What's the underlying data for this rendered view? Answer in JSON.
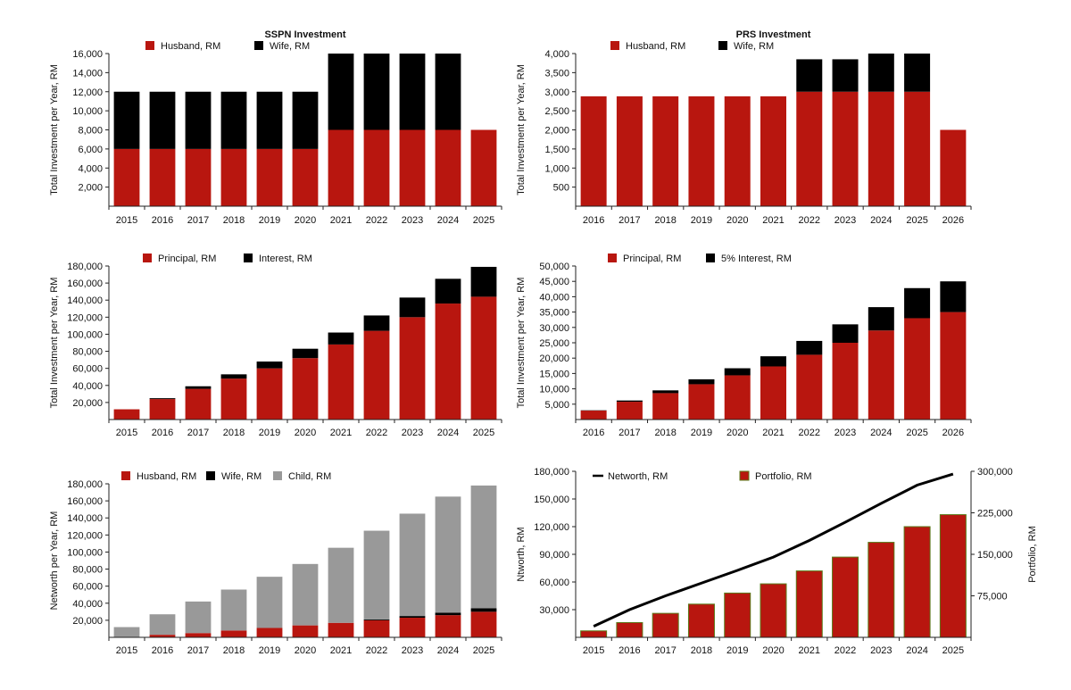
{
  "colors": {
    "red": "#b8160f",
    "black": "#000000",
    "gray": "#999999",
    "axis": "#222222",
    "line": "#000000"
  },
  "chart_data": [
    {
      "id": "sspn",
      "type": "bar",
      "stacked": true,
      "title": "SSPN Investment",
      "ylabel": "Total Investment per Year, RM",
      "xlabel": "",
      "ylim": [
        0,
        16000
      ],
      "yticks": [
        2000,
        4000,
        6000,
        8000,
        10000,
        12000,
        14000,
        16000
      ],
      "ytick_labels": [
        "2,000",
        "4,000",
        "6,000",
        "8,000",
        "10,000",
        "12,000",
        "14,000",
        "16,000"
      ],
      "categories": [
        "2015",
        "2016",
        "2017",
        "2018",
        "2019",
        "2020",
        "2021",
        "2022",
        "2023",
        "2024",
        "2025"
      ],
      "series": [
        {
          "name": "Husband, RM",
          "color": "red",
          "values": [
            6000,
            6000,
            6000,
            6000,
            6000,
            6000,
            8000,
            8000,
            8000,
            8000,
            8000
          ]
        },
        {
          "name": "Wife, RM",
          "color": "black",
          "values": [
            6000,
            6000,
            6000,
            6000,
            6000,
            6000,
            8000,
            8000,
            8000,
            8000,
            0
          ]
        }
      ],
      "legend": "top"
    },
    {
      "id": "prs",
      "type": "bar",
      "stacked": true,
      "title": "PRS Investment",
      "ylabel": "Total Investment per Year, RM",
      "xlabel": "",
      "ylim": [
        0,
        4000
      ],
      "yticks": [
        500,
        1000,
        1500,
        2000,
        2500,
        3000,
        3500,
        4000
      ],
      "ytick_labels": [
        "500",
        "1,000",
        "1,500",
        "2,000",
        "2,500",
        "3,000",
        "3,500",
        "4,000"
      ],
      "categories": [
        "2016",
        "2017",
        "2018",
        "2019",
        "2020",
        "2021",
        "2022",
        "2023",
        "2024",
        "2025",
        "2026"
      ],
      "series": [
        {
          "name": "Husband, RM",
          "color": "red",
          "values": [
            2880,
            2880,
            2880,
            2880,
            2880,
            2880,
            3000,
            3000,
            3000,
            3000,
            2000
          ]
        },
        {
          "name": "Wife, RM",
          "color": "black",
          "values": [
            0,
            0,
            0,
            0,
            0,
            0,
            850,
            850,
            1000,
            1000,
            0
          ]
        }
      ],
      "legend": "top"
    },
    {
      "id": "sspn_growth",
      "type": "bar",
      "stacked": true,
      "title": "",
      "ylabel": "Total Investment per Year, RM",
      "xlabel": "",
      "ylim": [
        0,
        180000
      ],
      "yticks": [
        20000,
        40000,
        60000,
        80000,
        100000,
        120000,
        140000,
        160000,
        180000
      ],
      "ytick_labels": [
        "20,000",
        "40,000",
        "60,000",
        "80,000",
        "100,000",
        "120,000",
        "140,000",
        "160,000",
        "180,000"
      ],
      "categories": [
        "2015",
        "2016",
        "2017",
        "2018",
        "2019",
        "2020",
        "2021",
        "2022",
        "2023",
        "2024",
        "2025"
      ],
      "series": [
        {
          "name": "Principal, RM",
          "color": "red",
          "values": [
            12000,
            24000,
            36000,
            48000,
            60000,
            72000,
            88000,
            104000,
            120000,
            136000,
            144000
          ]
        },
        {
          "name": "Interest, RM",
          "color": "black",
          "values": [
            0,
            1000,
            3000,
            5000,
            8000,
            11000,
            14000,
            18000,
            23000,
            29000,
            35000
          ]
        }
      ],
      "legend": "top"
    },
    {
      "id": "prs_growth",
      "type": "bar",
      "stacked": true,
      "title": "",
      "ylabel": "Total Investment per Year, RM",
      "xlabel": "",
      "ylim": [
        0,
        50000
      ],
      "yticks": [
        5000,
        10000,
        15000,
        20000,
        25000,
        30000,
        35000,
        40000,
        45000,
        50000
      ],
      "ytick_labels": [
        "5,000",
        "10,000",
        "15,000",
        "20,000",
        "25,000",
        "30,000",
        "35,000",
        "40,000",
        "45,000",
        "50,000"
      ],
      "categories": [
        "2016",
        "2017",
        "2018",
        "2019",
        "2020",
        "2021",
        "2022",
        "2023",
        "2024",
        "2025",
        "2026"
      ],
      "series": [
        {
          "name": "Principal, RM",
          "color": "red",
          "values": [
            2900,
            5800,
            8600,
            11500,
            14400,
            17300,
            21100,
            25000,
            29000,
            33000,
            35000
          ]
        },
        {
          "name": "5% Interest, RM",
          "color": "black",
          "values": [
            100,
            400,
            900,
            1600,
            2300,
            3300,
            4500,
            6000,
            7600,
            9800,
            10000
          ]
        }
      ],
      "legend": "top"
    },
    {
      "id": "networth_split",
      "type": "bar",
      "stacked": true,
      "title": "",
      "ylabel": "Networth per Year, RM",
      "xlabel": "",
      "ylim": [
        0,
        180000
      ],
      "yticks": [
        20000,
        40000,
        60000,
        80000,
        100000,
        120000,
        140000,
        160000,
        180000
      ],
      "ytick_labels": [
        "20,000",
        "40,000",
        "60,000",
        "80,000",
        "100,000",
        "120,000",
        "140,000",
        "160,000",
        "180,000"
      ],
      "categories": [
        "2015",
        "2016",
        "2017",
        "2018",
        "2019",
        "2020",
        "2021",
        "2022",
        "2023",
        "2024",
        "2025"
      ],
      "series": [
        {
          "name": "Husband, RM",
          "color": "red",
          "values": [
            0,
            3000,
            5000,
            8000,
            11000,
            14000,
            17000,
            20000,
            23000,
            26000,
            30000
          ]
        },
        {
          "name": "Wife, RM",
          "color": "black",
          "values": [
            0,
            0,
            0,
            0,
            0,
            0,
            0,
            1000,
            2000,
            3000,
            4000
          ]
        },
        {
          "name": "Child, RM",
          "color": "gray",
          "values": [
            12000,
            24000,
            37000,
            48000,
            60000,
            72000,
            88000,
            104000,
            120000,
            136000,
            144000
          ]
        }
      ],
      "legend": "top"
    },
    {
      "id": "networth_portfolio",
      "type": "bar+line",
      "title": "",
      "ylabel": "Ntworth, RM",
      "y2label": "Portfolio, RM",
      "xlabel": "",
      "ylim": [
        0,
        180000
      ],
      "yticks": [
        30000,
        60000,
        90000,
        120000,
        150000,
        180000
      ],
      "ytick_labels": [
        "30,000",
        "60,000",
        "90,000",
        "120,000",
        "150,000",
        "180,000"
      ],
      "y2lim": [
        0,
        300000
      ],
      "y2ticks": [
        75000,
        150000,
        225000,
        300000
      ],
      "y2tick_labels": [
        "75,000",
        "150,000",
        "225,000",
        "300,000"
      ],
      "categories": [
        "2015",
        "2016",
        "2017",
        "2018",
        "2019",
        "2020",
        "2021",
        "2022",
        "2023",
        "2024",
        "2025"
      ],
      "series": [
        {
          "name": "Portfolio, RM",
          "kind": "bar",
          "axis": "left",
          "color": "red",
          "values": [
            7000,
            16000,
            26000,
            36000,
            48000,
            58000,
            72000,
            87000,
            103000,
            120000,
            133000
          ]
        },
        {
          "name": "Networth, RM",
          "kind": "line",
          "axis": "right",
          "color": "line",
          "values": [
            20000,
            50000,
            75000,
            98000,
            121000,
            145000,
            175000,
            208000,
            242000,
            275000,
            295000
          ]
        }
      ],
      "legend": "top"
    }
  ]
}
